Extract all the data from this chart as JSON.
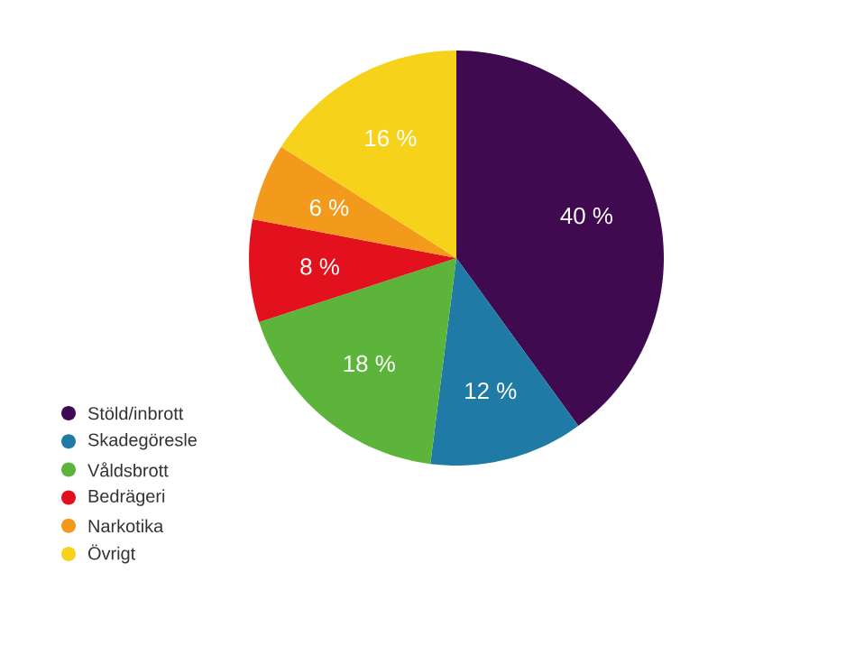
{
  "chart_data": {
    "type": "pie",
    "categories": [
      "Stöld/inbrott",
      "Skadegöresle",
      "Våldsbrott",
      "Bedrägeri",
      "Narkotika",
      "Övrigt"
    ],
    "values": [
      40,
      12,
      18,
      8,
      6,
      16
    ],
    "colors": [
      "#3f0a4f",
      "#1f7ba5",
      "#5db43a",
      "#e3101e",
      "#f39a1d",
      "#f6d31a"
    ],
    "value_labels": [
      "40 %",
      "12 %",
      "18 %",
      "8 %",
      "6 %",
      "16 %"
    ],
    "legend": "bottom left"
  }
}
